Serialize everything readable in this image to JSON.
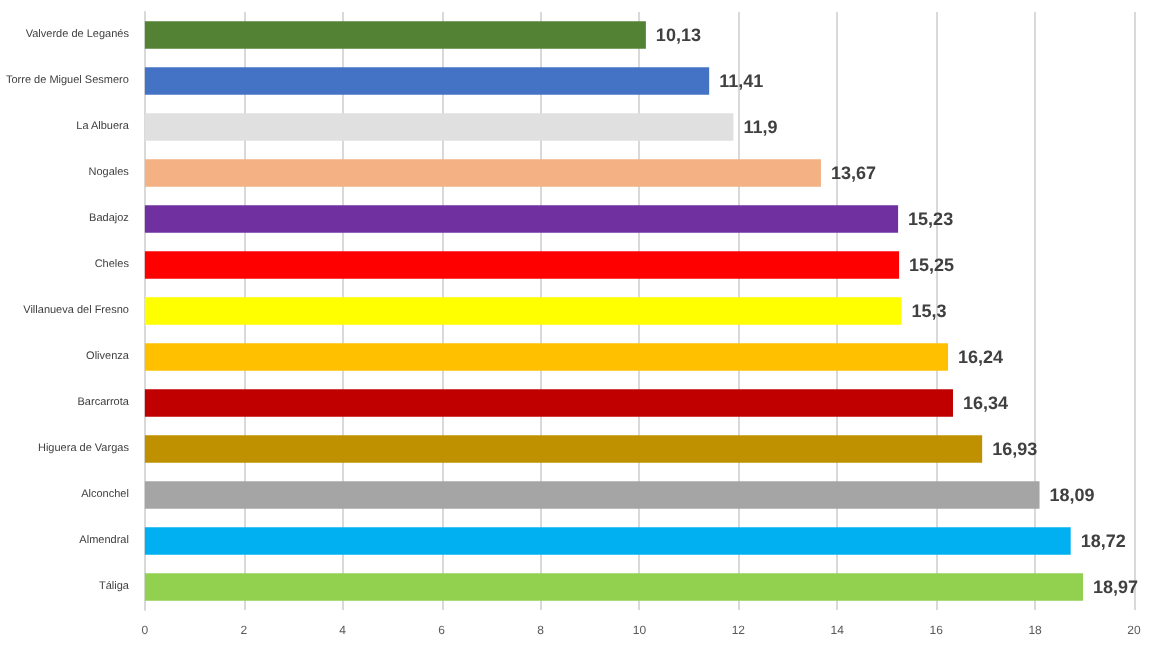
{
  "chart_data": {
    "type": "bar",
    "orientation": "horizontal",
    "categories": [
      "Valverde de Leganés",
      "Torre de Miguel Sesmero",
      "La Albuera",
      "Nogales",
      "Badajoz",
      "Cheles",
      "Villanueva del Fresno",
      "Olivenza",
      "Barcarrota",
      "Higuera de Vargas",
      "Alconchel",
      "Almendral",
      "Táliga"
    ],
    "values": [
      10.13,
      11.41,
      11.9,
      13.67,
      15.23,
      15.25,
      15.3,
      16.24,
      16.34,
      16.93,
      18.09,
      18.72,
      18.97
    ],
    "value_labels": [
      "10,13",
      "11,41",
      "11,9",
      "13,67",
      "15,23",
      "15,25",
      "15,3",
      "16,24",
      "16,34",
      "16,93",
      "18,09",
      "18,72",
      "18,97"
    ],
    "colors": [
      "#548235",
      "#4472c4",
      "#e0e0e0",
      "#f4b183",
      "#7030a0",
      "#ff0000",
      "#ffff00",
      "#ffc000",
      "#c00000",
      "#bf9000",
      "#a5a5a5",
      "#00b0f0",
      "#92d050"
    ],
    "xlim": [
      0,
      20
    ],
    "xticks": [
      0,
      2,
      4,
      6,
      8,
      10,
      12,
      14,
      16,
      18,
      20
    ],
    "grid": "x"
  }
}
